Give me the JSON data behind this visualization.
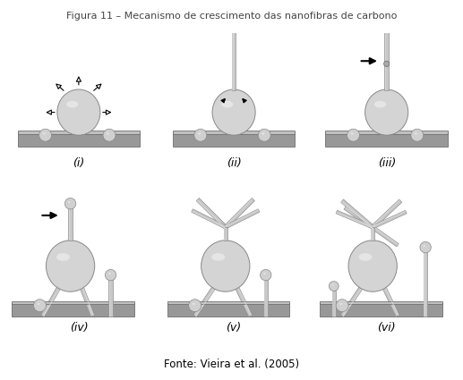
{
  "title": "Figura 11 – Mecanismo de crescimento das nanofibras de carbono",
  "subtitle": "Fonte: Vieira et al. (2005)",
  "panel_labels": [
    "(i)",
    "(ii)",
    "(iii)",
    "(iv)",
    "(v)",
    "(vi)"
  ],
  "bg_color": "#ffffff",
  "sphere_color_light": "#d4d4d4",
  "sphere_color_dark": "#a0a0a0",
  "platform_top": "#c0c0c0",
  "platform_front": "#989898",
  "platform_side": "#b0b0b0",
  "rod_light": "#c8c8c8",
  "rod_dark": "#909090",
  "small_sphere": "#d0d0d0",
  "label_fontsize": 9,
  "title_fontsize": 8,
  "subtitle_fontsize": 8.5
}
